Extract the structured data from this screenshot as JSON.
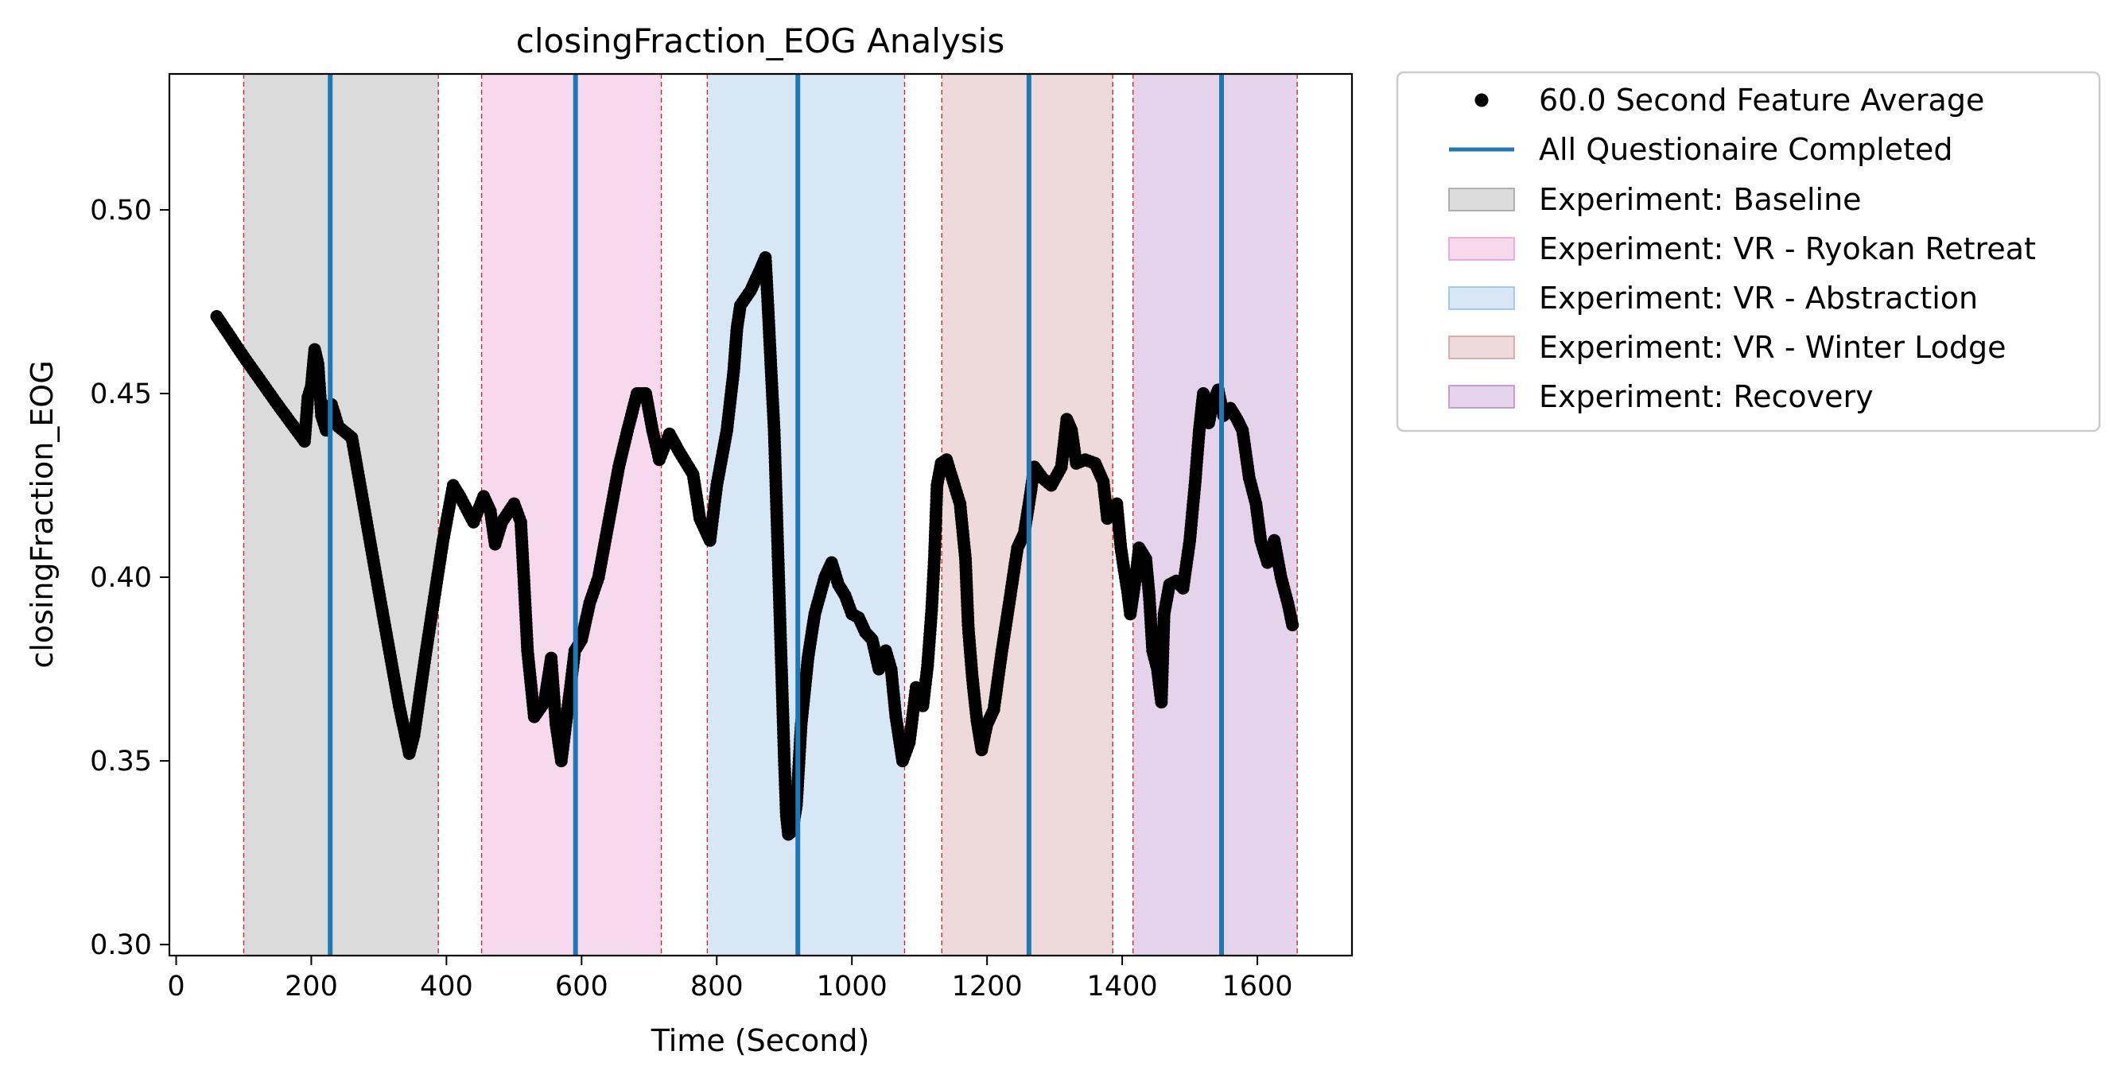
{
  "chart_data": {
    "type": "scatter",
    "title": "closingFraction_EOG Analysis",
    "xlabel": "Time (Second)",
    "ylabel": "closingFraction_EOG",
    "xlim": [
      -10,
      1740
    ],
    "ylim": [
      0.297,
      0.537
    ],
    "xticks": [
      0,
      200,
      400,
      600,
      800,
      1000,
      1200,
      1400,
      1600
    ],
    "yticks": [
      0.3,
      0.35,
      0.4,
      0.45,
      0.5
    ],
    "xtick_labels": [
      "0",
      "200",
      "400",
      "600",
      "800",
      "1000",
      "1200",
      "1400",
      "1600"
    ],
    "ytick_labels": [
      "0.30",
      "0.35",
      "0.40",
      "0.45",
      "0.50"
    ],
    "grid": false,
    "legend_position": "outside-right-top",
    "legend": {
      "points": "60.0 Second Feature Average",
      "lines": "All Questionaire Completed",
      "regions": [
        "Experiment: Baseline",
        "Experiment: VR - Ryokan Retreat",
        "Experiment: VR - Abstraction",
        "Experiment: VR - Winter Lodge",
        "Experiment: Recovery"
      ]
    },
    "regions": [
      {
        "name": "Experiment: Baseline",
        "start": 100,
        "end": 388,
        "color": "#7f7f7f"
      },
      {
        "name": "Experiment: VR - Ryokan Retreat",
        "start": 452,
        "end": 718,
        "color": "#e377c2"
      },
      {
        "name": "Experiment: VR - Abstraction",
        "start": 786,
        "end": 1078,
        "color": "#6fa8dc"
      },
      {
        "name": "Experiment: VR - Winter Lodge",
        "start": 1133,
        "end": 1386,
        "color": "#c27b7b"
      },
      {
        "name": "Experiment: Recovery",
        "start": 1416,
        "end": 1659,
        "color": "#a361b8"
      }
    ],
    "questionnaire_times": [
      228,
      591,
      920,
      1262,
      1547
    ],
    "colors": {
      "points": "#000000",
      "questionnaire_line": "#1f77b4",
      "region_border": "#d62728",
      "region_opacity": "0.28"
    },
    "series": [
      {
        "name": "60.0 Second Feature Average",
        "points": [
          [
            60,
            0.471
          ],
          [
            100,
            0.46
          ],
          [
            150,
            0.447
          ],
          [
            190,
            0.437
          ],
          [
            195,
            0.449
          ],
          [
            200,
            0.452
          ],
          [
            205,
            0.462
          ],
          [
            210,
            0.458
          ],
          [
            215,
            0.444
          ],
          [
            222,
            0.44
          ],
          [
            230,
            0.447
          ],
          [
            240,
            0.441
          ],
          [
            260,
            0.438
          ],
          [
            300,
            0.396
          ],
          [
            330,
            0.365
          ],
          [
            345,
            0.352
          ],
          [
            352,
            0.357
          ],
          [
            370,
            0.38
          ],
          [
            395,
            0.41
          ],
          [
            410,
            0.425
          ],
          [
            420,
            0.422
          ],
          [
            440,
            0.415
          ],
          [
            455,
            0.422
          ],
          [
            465,
            0.418
          ],
          [
            472,
            0.409
          ],
          [
            482,
            0.415
          ],
          [
            500,
            0.42
          ],
          [
            510,
            0.415
          ],
          [
            515,
            0.398
          ],
          [
            520,
            0.38
          ],
          [
            530,
            0.362
          ],
          [
            545,
            0.366
          ],
          [
            555,
            0.378
          ],
          [
            562,
            0.36
          ],
          [
            570,
            0.35
          ],
          [
            580,
            0.365
          ],
          [
            590,
            0.38
          ],
          [
            600,
            0.383
          ],
          [
            612,
            0.393
          ],
          [
            625,
            0.4
          ],
          [
            640,
            0.415
          ],
          [
            655,
            0.43
          ],
          [
            668,
            0.44
          ],
          [
            682,
            0.45
          ],
          [
            695,
            0.45
          ],
          [
            705,
            0.44
          ],
          [
            715,
            0.432
          ],
          [
            730,
            0.439
          ],
          [
            745,
            0.434
          ],
          [
            765,
            0.428
          ],
          [
            775,
            0.416
          ],
          [
            790,
            0.41
          ],
          [
            800,
            0.425
          ],
          [
            815,
            0.44
          ],
          [
            825,
            0.456
          ],
          [
            830,
            0.468
          ],
          [
            835,
            0.474
          ],
          [
            850,
            0.478
          ],
          [
            865,
            0.484
          ],
          [
            872,
            0.487
          ],
          [
            876,
            0.473
          ],
          [
            880,
            0.458
          ],
          [
            885,
            0.44
          ],
          [
            890,
            0.41
          ],
          [
            895,
            0.38
          ],
          [
            900,
            0.35
          ],
          [
            903,
            0.335
          ],
          [
            906,
            0.33
          ],
          [
            912,
            0.331
          ],
          [
            918,
            0.338
          ],
          [
            925,
            0.36
          ],
          [
            935,
            0.378
          ],
          [
            945,
            0.39
          ],
          [
            960,
            0.4
          ],
          [
            970,
            0.404
          ],
          [
            980,
            0.398
          ],
          [
            990,
            0.395
          ],
          [
            1000,
            0.39
          ],
          [
            1010,
            0.389
          ],
          [
            1020,
            0.385
          ],
          [
            1030,
            0.383
          ],
          [
            1040,
            0.375
          ],
          [
            1050,
            0.38
          ],
          [
            1058,
            0.375
          ],
          [
            1065,
            0.362
          ],
          [
            1075,
            0.35
          ],
          [
            1085,
            0.355
          ],
          [
            1095,
            0.37
          ],
          [
            1105,
            0.365
          ],
          [
            1112,
            0.376
          ],
          [
            1118,
            0.391
          ],
          [
            1122,
            0.405
          ],
          [
            1126,
            0.425
          ],
          [
            1132,
            0.431
          ],
          [
            1140,
            0.432
          ],
          [
            1150,
            0.426
          ],
          [
            1160,
            0.42
          ],
          [
            1168,
            0.405
          ],
          [
            1172,
            0.387
          ],
          [
            1178,
            0.373
          ],
          [
            1185,
            0.361
          ],
          [
            1192,
            0.353
          ],
          [
            1200,
            0.36
          ],
          [
            1210,
            0.364
          ],
          [
            1222,
            0.38
          ],
          [
            1232,
            0.392
          ],
          [
            1245,
            0.408
          ],
          [
            1255,
            0.412
          ],
          [
            1262,
            0.42
          ],
          [
            1270,
            0.43
          ],
          [
            1282,
            0.427
          ],
          [
            1295,
            0.425
          ],
          [
            1310,
            0.43
          ],
          [
            1318,
            0.443
          ],
          [
            1325,
            0.44
          ],
          [
            1332,
            0.431
          ],
          [
            1345,
            0.432
          ],
          [
            1360,
            0.431
          ],
          [
            1372,
            0.426
          ],
          [
            1378,
            0.416
          ],
          [
            1385,
            0.419
          ],
          [
            1392,
            0.42
          ],
          [
            1398,
            0.408
          ],
          [
            1402,
            0.403
          ],
          [
            1408,
            0.396
          ],
          [
            1412,
            0.39
          ],
          [
            1420,
            0.4
          ],
          [
            1425,
            0.408
          ],
          [
            1435,
            0.405
          ],
          [
            1440,
            0.395
          ],
          [
            1445,
            0.38
          ],
          [
            1452,
            0.375
          ],
          [
            1458,
            0.366
          ],
          [
            1462,
            0.39
          ],
          [
            1470,
            0.398
          ],
          [
            1480,
            0.399
          ],
          [
            1490,
            0.397
          ],
          [
            1500,
            0.41
          ],
          [
            1508,
            0.426
          ],
          [
            1514,
            0.44
          ],
          [
            1520,
            0.45
          ],
          [
            1528,
            0.442
          ],
          [
            1535,
            0.448
          ],
          [
            1542,
            0.451
          ],
          [
            1550,
            0.444
          ],
          [
            1560,
            0.446
          ],
          [
            1570,
            0.443
          ],
          [
            1578,
            0.44
          ],
          [
            1588,
            0.427
          ],
          [
            1598,
            0.42
          ],
          [
            1605,
            0.41
          ],
          [
            1615,
            0.404
          ],
          [
            1625,
            0.41
          ],
          [
            1635,
            0.4
          ],
          [
            1645,
            0.393
          ],
          [
            1652,
            0.387
          ]
        ]
      }
    ]
  }
}
